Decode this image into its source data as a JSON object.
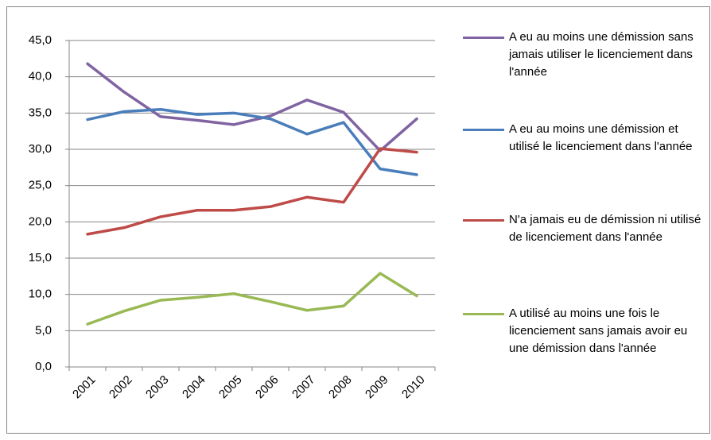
{
  "chart_data": {
    "type": "line",
    "categories": [
      "2001",
      "2002",
      "2003",
      "2004",
      "2005",
      "2006",
      "2007",
      "2008",
      "2009",
      "2010"
    ],
    "series": [
      {
        "name": "A eu au moins une démission sans jamais utiliser le licenciement dans l'année",
        "color": "#8064a2",
        "values": [
          41.8,
          37.9,
          34.5,
          34.0,
          33.4,
          34.6,
          36.8,
          35.1,
          29.8,
          34.2
        ]
      },
      {
        "name": "A eu au moins une démission et utilisé le licenciement dans l'année",
        "color": "#4a7ebb",
        "values": [
          34.1,
          35.2,
          35.5,
          34.8,
          35.0,
          34.2,
          32.1,
          33.7,
          27.3,
          26.5
        ]
      },
      {
        "name": "N'a jamais eu de démission ni utilisé de licenciement dans l'année",
        "color": "#be4b48",
        "values": [
          18.3,
          19.2,
          20.7,
          21.6,
          21.6,
          22.1,
          23.4,
          22.7,
          30.1,
          29.6
        ]
      },
      {
        "name": "A utilisé au moins une fois le licenciement sans jamais avoir eu une démission dans l'année",
        "color": "#98b954",
        "values": [
          5.9,
          7.7,
          9.2,
          9.6,
          10.1,
          9.0,
          7.8,
          8.4,
          12.9,
          9.8
        ]
      }
    ],
    "ylim": [
      0,
      45
    ],
    "yticks": [
      {
        "value": 0,
        "label": "0,0"
      },
      {
        "value": 5,
        "label": "5,0"
      },
      {
        "value": 10,
        "label": "10,0"
      },
      {
        "value": 15,
        "label": "15,0"
      },
      {
        "value": 20,
        "label": "20,0"
      },
      {
        "value": 25,
        "label": "25,0"
      },
      {
        "value": 30,
        "label": "30,0"
      },
      {
        "value": 35,
        "label": "35,0"
      },
      {
        "value": 40,
        "label": "40,0"
      },
      {
        "value": 45,
        "label": "45,0"
      }
    ],
    "grid": true
  }
}
